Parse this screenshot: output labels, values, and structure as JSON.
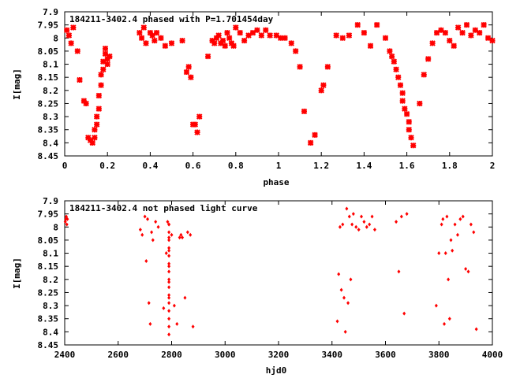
{
  "chart_data": [
    {
      "type": "scatter",
      "title": "184211-3402.4 phased with P=1.701454day",
      "xlabel": "phase",
      "ylabel": "I[mag]",
      "xlim": [
        0,
        2
      ],
      "ylim": [
        8.45,
        7.9
      ],
      "y_inverted": true,
      "xticks": [
        "0",
        "0.2",
        "0.4",
        "0.6",
        "0.8",
        "1",
        "1.2",
        "1.4",
        "1.6",
        "1.8",
        "2"
      ],
      "yticks": [
        "7.9",
        "7.95",
        "8",
        "8.05",
        "8.1",
        "8.15",
        "8.2",
        "8.25",
        "8.3",
        "8.35",
        "8.4",
        "8.45"
      ],
      "marker_color": "#ff0000",
      "series": [
        {
          "x": [
            0.01,
            0.02,
            0.03,
            0.04,
            0.06,
            0.07,
            0.09,
            0.1,
            0.11,
            0.12,
            0.13,
            0.14,
            0.14,
            0.15,
            0.15,
            0.16,
            0.16,
            0.17,
            0.17,
            0.18,
            0.18,
            0.19,
            0.19,
            0.2,
            0.2,
            0.21,
            0.35,
            0.36,
            0.37,
            0.38,
            0.4,
            0.41,
            0.42,
            0.43,
            0.45,
            0.47,
            0.5,
            0.55,
            0.57,
            0.58,
            0.59,
            0.6,
            0.61,
            0.62,
            0.63,
            0.67,
            0.69,
            0.7,
            0.71,
            0.72,
            0.73,
            0.74,
            0.75,
            0.76,
            0.77,
            0.78,
            0.79,
            0.8,
            0.82,
            0.84,
            0.86,
            0.88,
            0.9,
            0.92,
            0.94,
            0.96,
            0.99,
            1.01,
            1.03,
            1.06,
            1.08,
            1.1,
            1.12,
            1.15,
            1.17,
            1.2,
            1.21,
            1.23,
            1.27,
            1.3,
            1.33,
            1.37,
            1.4,
            1.43,
            1.46,
            1.5,
            1.52,
            1.53,
            1.54,
            1.55,
            1.56,
            1.57,
            1.58,
            1.58,
            1.59,
            1.6,
            1.61,
            1.61,
            1.62,
            1.63,
            1.66,
            1.68,
            1.7,
            1.72,
            1.74,
            1.76,
            1.78,
            1.8,
            1.82,
            1.84,
            1.86,
            1.88,
            1.9,
            1.92,
            1.94,
            1.96,
            1.98,
            2.0
          ],
          "y": [
            7.97,
            7.99,
            8.02,
            7.96,
            8.05,
            8.16,
            8.24,
            8.25,
            8.38,
            8.39,
            8.4,
            8.38,
            8.35,
            8.33,
            8.3,
            8.27,
            8.22,
            8.18,
            8.14,
            8.12,
            8.09,
            8.06,
            8.04,
            8.1,
            8.08,
            8.07,
            7.98,
            8.0,
            7.96,
            8.02,
            7.98,
            7.99,
            8.01,
            7.98,
            8.0,
            8.03,
            8.02,
            8.01,
            8.13,
            8.11,
            8.15,
            8.33,
            8.33,
            8.36,
            8.3,
            8.07,
            8.01,
            8.02,
            8.0,
            7.99,
            8.02,
            8.01,
            8.03,
            7.98,
            8.0,
            8.02,
            8.03,
            7.96,
            7.98,
            8.01,
            7.99,
            7.98,
            7.97,
            7.99,
            7.97,
            7.99,
            7.99,
            8.0,
            8.0,
            8.02,
            8.05,
            8.11,
            8.28,
            8.4,
            8.37,
            8.2,
            8.18,
            8.11,
            7.99,
            8.0,
            7.99,
            7.95,
            7.98,
            8.03,
            7.95,
            8.0,
            8.05,
            8.07,
            8.09,
            8.12,
            8.15,
            8.18,
            8.21,
            8.24,
            8.27,
            8.29,
            8.32,
            8.35,
            8.38,
            8.41,
            8.25,
            8.14,
            8.08,
            8.02,
            7.98,
            7.97,
            7.98,
            8.01,
            8.03,
            7.96,
            7.98,
            7.95,
            7.99,
            7.97,
            7.98,
            7.95,
            8.0,
            8.01
          ]
        }
      ]
    },
    {
      "type": "scatter",
      "title": "184211-3402.4 not phased light curve",
      "xlabel": "hjd0",
      "ylabel": "I[mag]",
      "xlim": [
        2400,
        4000
      ],
      "ylim": [
        8.45,
        7.9
      ],
      "y_inverted": true,
      "xticks": [
        "2400",
        "2600",
        "2800",
        "3000",
        "3200",
        "3400",
        "3600",
        "3800",
        "4000"
      ],
      "yticks": [
        "7.9",
        "7.95",
        "8",
        "8.05",
        "8.1",
        "8.15",
        "8.2",
        "8.25",
        "8.3",
        "8.35",
        "8.4",
        "8.45"
      ],
      "marker_color": "#ff0000",
      "series": [
        {
          "x": [
            2402,
            2404,
            2406,
            2408,
            2410,
            2683,
            2690,
            2700,
            2705,
            2710,
            2715,
            2720,
            2725,
            2730,
            2740,
            2750,
            2770,
            2780,
            2785,
            2790,
            2790,
            2790,
            2790,
            2790,
            2790,
            2790,
            2790,
            2790,
            2790,
            2790,
            2790,
            2790,
            2790,
            2790,
            2790,
            2790,
            2790,
            2790,
            2790,
            2790,
            2800,
            2810,
            2820,
            2830,
            2835,
            2840,
            2850,
            2860,
            2870,
            2880,
            3420,
            3425,
            3430,
            3435,
            3440,
            3445,
            3450,
            3455,
            3460,
            3465,
            3470,
            3475,
            3480,
            3490,
            3500,
            3510,
            3520,
            3530,
            3540,
            3550,
            3560,
            3640,
            3650,
            3660,
            3670,
            3680,
            3790,
            3800,
            3810,
            3815,
            3820,
            3825,
            3830,
            3835,
            3840,
            3845,
            3850,
            3860,
            3870,
            3880,
            3890,
            3900,
            3910,
            3920,
            3930,
            3940
          ],
          "y": [
            7.98,
            7.97,
            7.96,
            7.99,
            7.97,
            8.01,
            8.03,
            7.96,
            8.13,
            7.97,
            8.29,
            8.37,
            8.02,
            8.05,
            7.98,
            8.0,
            8.31,
            8.1,
            7.98,
            7.99,
            8.02,
            8.05,
            8.08,
            8.11,
            8.14,
            8.17,
            8.2,
            8.23,
            8.26,
            8.29,
            8.32,
            8.35,
            8.38,
            8.41,
            7.99,
            8.04,
            8.09,
            8.15,
            8.21,
            8.27,
            8.03,
            8.3,
            8.37,
            8.04,
            8.03,
            8.04,
            8.27,
            8.02,
            8.03,
            8.38,
            8.36,
            8.18,
            8.0,
            8.24,
            7.99,
            8.27,
            8.4,
            7.93,
            8.29,
            7.96,
            8.2,
            7.99,
            7.95,
            8.0,
            8.01,
            7.96,
            7.98,
            8.0,
            7.99,
            7.96,
            8.01,
            7.98,
            8.17,
            7.96,
            8.33,
            7.95,
            8.3,
            8.1,
            7.99,
            7.97,
            8.37,
            8.1,
            7.96,
            8.2,
            8.35,
            8.05,
            8.09,
            7.99,
            8.03,
            7.97,
            7.96,
            8.16,
            8.17,
            7.99,
            8.02,
            8.39
          ]
        }
      ]
    }
  ]
}
